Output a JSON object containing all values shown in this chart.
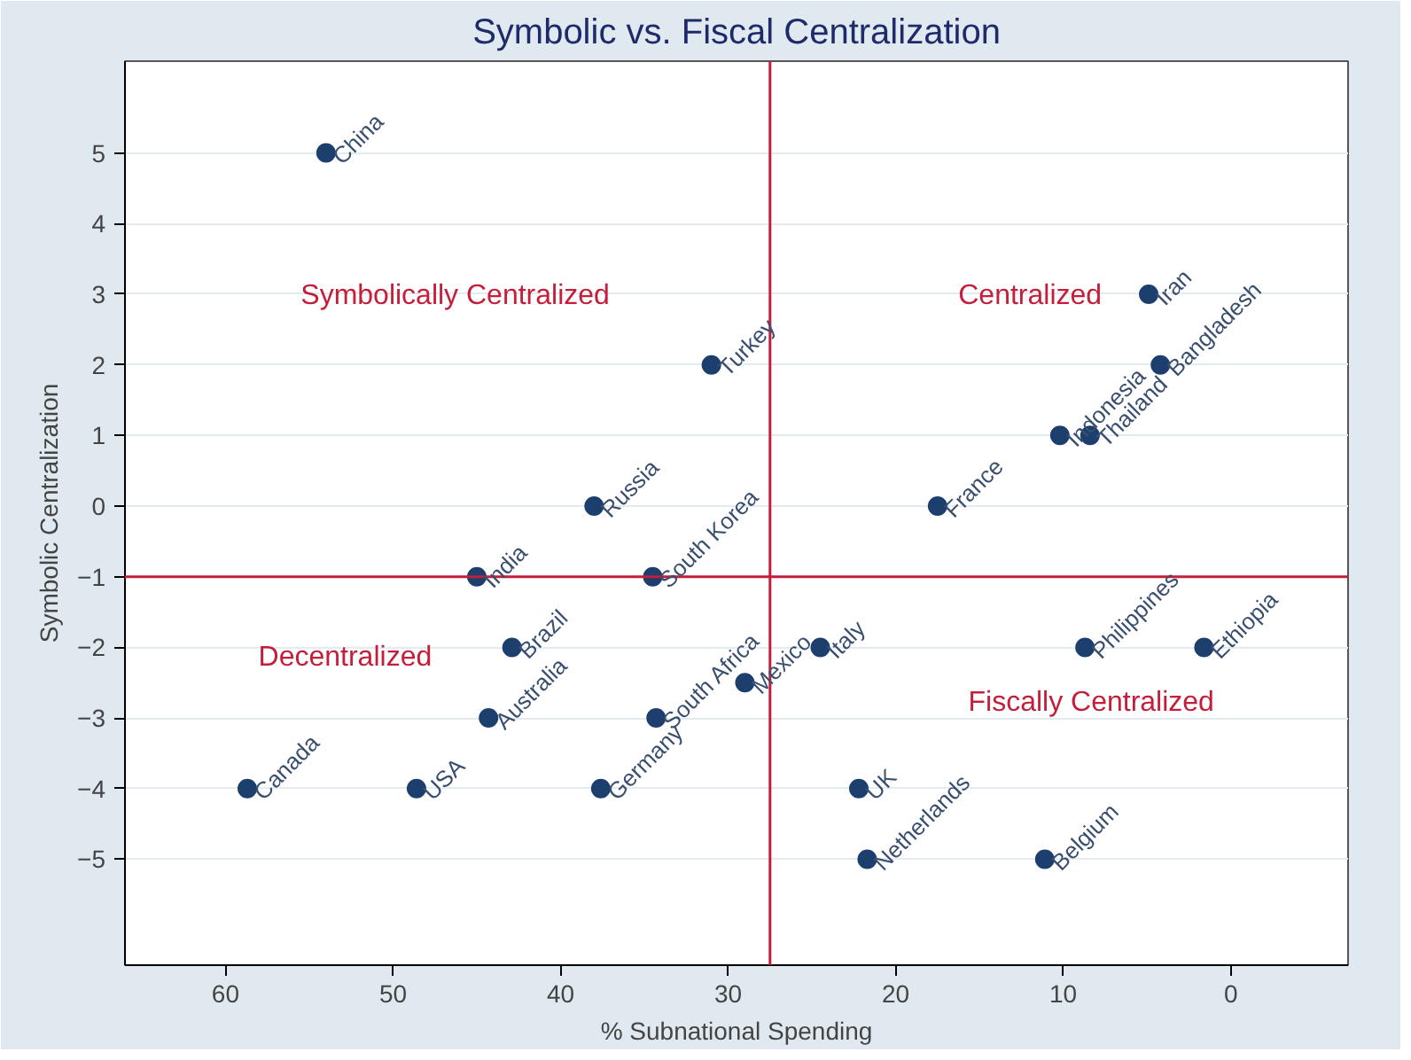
{
  "chart_data": {
    "type": "scatter",
    "title": "Symbolic vs. Fiscal Centralization",
    "xlabel": "% Subnational Spending",
    "ylabel": "Symbolic Centralization",
    "xlim": [
      66,
      -7
    ],
    "ylim": [
      -6.5,
      6.3
    ],
    "xticks": [
      60,
      50,
      40,
      30,
      20,
      10,
      0
    ],
    "yticks": [
      -5,
      -4,
      -3,
      -2,
      -1,
      0,
      1,
      2,
      3,
      4,
      5
    ],
    "grid": "y",
    "marker": "circle",
    "series": [
      {
        "color": "#1c3f6e",
        "x": [
          54,
          31,
          38,
          45,
          34.5,
          58.7,
          48.6,
          42.9,
          44.3,
          37.6,
          34.3,
          29,
          24.5,
          8.7,
          1.6,
          22.2,
          21.7,
          11.1,
          17.5,
          10.2,
          8.4,
          4.9,
          4.2
        ],
        "values": [
          5,
          2,
          0,
          -1,
          -1,
          -4,
          -4,
          -2,
          -3,
          -4,
          -3,
          -2.5,
          -2,
          -2,
          -2,
          -4,
          -5,
          -5,
          0,
          1,
          1,
          3,
          2
        ]
      }
    ],
    "ref_lines": [
      {
        "axis": "x",
        "value": 27.5,
        "color": "#c41e3a"
      },
      {
        "axis": "y",
        "value": -1,
        "color": "#c41e3a"
      }
    ],
    "annotations": [
      {
        "text": "China",
        "x": 54,
        "y": 5
      },
      {
        "text": "Turkey",
        "x": 31,
        "y": 2
      },
      {
        "text": "Russia",
        "x": 38,
        "y": 0
      },
      {
        "text": "India",
        "x": 45,
        "y": -1
      },
      {
        "text": "South Korea",
        "x": 34.5,
        "y": -1
      },
      {
        "text": "Canada",
        "x": 58.7,
        "y": -4
      },
      {
        "text": "USA",
        "x": 48.6,
        "y": -4
      },
      {
        "text": "Brazil",
        "x": 42.9,
        "y": -2
      },
      {
        "text": "Australia",
        "x": 44.3,
        "y": -3
      },
      {
        "text": "Germany",
        "x": 37.6,
        "y": -4
      },
      {
        "text": "South Africa",
        "x": 34.3,
        "y": -3
      },
      {
        "text": "Mexico",
        "x": 29,
        "y": -2.5
      },
      {
        "text": "Italy",
        "x": 24.5,
        "y": -2
      },
      {
        "text": "Philippines",
        "x": 8.7,
        "y": -2
      },
      {
        "text": "Ethiopia",
        "x": 1.6,
        "y": -2
      },
      {
        "text": "UK",
        "x": 22.2,
        "y": -4
      },
      {
        "text": "Netherlands",
        "x": 21.7,
        "y": -5
      },
      {
        "text": "Belgium",
        "x": 11.1,
        "y": -5
      },
      {
        "text": "France",
        "x": 17.5,
        "y": 0
      },
      {
        "text": "Indonesia",
        "x": 10.2,
        "y": 1
      },
      {
        "text": "Thailand",
        "x": 8.4,
        "y": 1
      },
      {
        "text": "Iran",
        "x": 4.9,
        "y": 3
      },
      {
        "text": "Bangladesh",
        "x": 4.2,
        "y": 2
      },
      "Symbolically Centralized",
      "Centralized",
      "Decentralized",
      "Fiscally Centralized"
    ]
  }
}
